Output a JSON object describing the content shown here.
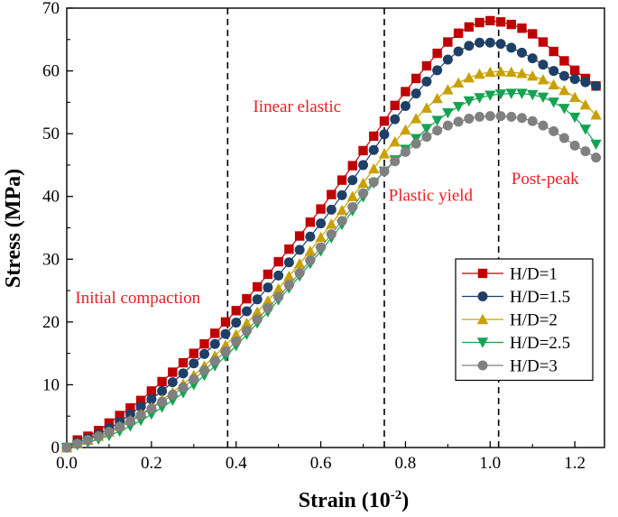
{
  "chart_data": {
    "type": "line",
    "xlabel": "Strain (10",
    "xlabel_exp": "-2",
    "xlabel_close": ")",
    "ylabel": "Stress (MPa)",
    "xlim": [
      0.0,
      1.27
    ],
    "ylim": [
      0,
      70
    ],
    "x_ticks": [
      0.0,
      0.2,
      0.4,
      0.6,
      0.8,
      1.0,
      1.2
    ],
    "x_tick_labels": [
      "0.0",
      "0.2",
      "0.4",
      "0.6",
      "0.8",
      "1.0",
      "1.2"
    ],
    "y_ticks": [
      0,
      10,
      20,
      30,
      40,
      50,
      60,
      70
    ],
    "y_tick_labels": [
      "0",
      "10",
      "20",
      "30",
      "40",
      "50",
      "60",
      "70"
    ],
    "stage_lines": [
      0.38,
      0.75,
      1.02
    ],
    "annotations": [
      {
        "text": "Initial compaction",
        "x": 0.02,
        "y": 23.0
      },
      {
        "text": "Iinear elastic",
        "x": 0.44,
        "y": 53.5
      },
      {
        "text": "Plastic yield",
        "x": 0.76,
        "y": 39.3
      },
      {
        "text": "Post-peak",
        "x": 1.05,
        "y": 42.0
      }
    ],
    "legend_position": "lower-right",
    "series": [
      {
        "name": "H/D=1",
        "marker": "square",
        "color": "#c00000",
        "x": [
          0.0,
          0.025,
          0.05,
          0.075,
          0.1,
          0.125,
          0.15,
          0.175,
          0.2,
          0.225,
          0.25,
          0.275,
          0.3,
          0.325,
          0.35,
          0.375,
          0.4,
          0.425,
          0.45,
          0.475,
          0.5,
          0.525,
          0.55,
          0.575,
          0.6,
          0.625,
          0.65,
          0.675,
          0.7,
          0.725,
          0.75,
          0.775,
          0.8,
          0.825,
          0.85,
          0.875,
          0.9,
          0.925,
          0.95,
          0.975,
          1.0,
          1.025,
          1.05,
          1.075,
          1.1,
          1.125,
          1.15,
          1.175,
          1.2,
          1.225,
          1.25
        ],
        "y": [
          0.0,
          1.2,
          1.8,
          2.7,
          3.9,
          5.1,
          6.3,
          7.5,
          9.0,
          10.5,
          12.0,
          13.5,
          15.0,
          16.5,
          18.2,
          20.0,
          21.8,
          23.7,
          25.6,
          27.6,
          29.6,
          31.6,
          33.7,
          35.9,
          38.0,
          40.3,
          42.6,
          44.9,
          47.3,
          49.6,
          52.0,
          54.5,
          56.7,
          58.8,
          60.8,
          62.8,
          64.6,
          66.0,
          67.0,
          67.7,
          68.0,
          67.8,
          67.4,
          66.8,
          65.9,
          64.6,
          63.1,
          61.6,
          60.1,
          58.8,
          57.6
        ]
      },
      {
        "name": "H/D=1.5",
        "marker": "circle",
        "color": "#1e3f66",
        "x": [
          0.0,
          0.025,
          0.05,
          0.075,
          0.1,
          0.125,
          0.15,
          0.175,
          0.2,
          0.225,
          0.25,
          0.275,
          0.3,
          0.325,
          0.35,
          0.375,
          0.4,
          0.425,
          0.45,
          0.475,
          0.5,
          0.525,
          0.55,
          0.575,
          0.6,
          0.625,
          0.65,
          0.675,
          0.7,
          0.725,
          0.75,
          0.775,
          0.8,
          0.825,
          0.85,
          0.875,
          0.9,
          0.925,
          0.95,
          0.975,
          1.0,
          1.025,
          1.05,
          1.075,
          1.1,
          1.125,
          1.15,
          1.175,
          1.2,
          1.225,
          1.25
        ],
        "y": [
          0.0,
          0.8,
          1.4,
          2.1,
          3.0,
          4.1,
          5.3,
          6.5,
          7.7,
          9.0,
          10.4,
          11.8,
          13.4,
          14.9,
          16.5,
          18.1,
          19.9,
          21.7,
          23.6,
          25.5,
          27.4,
          29.5,
          31.5,
          33.6,
          35.7,
          37.9,
          40.2,
          42.6,
          45.0,
          47.4,
          49.9,
          52.3,
          54.4,
          56.4,
          58.3,
          60.1,
          61.8,
          63.1,
          64.0,
          64.5,
          64.5,
          64.3,
          63.7,
          62.9,
          62.0,
          61.0,
          60.0,
          59.2,
          58.7,
          58.2,
          57.6
        ]
      },
      {
        "name": "H/D=2",
        "marker": "triangle-up",
        "color": "#c8a000",
        "x": [
          0.0,
          0.025,
          0.05,
          0.075,
          0.1,
          0.125,
          0.15,
          0.175,
          0.2,
          0.225,
          0.25,
          0.275,
          0.3,
          0.325,
          0.35,
          0.375,
          0.4,
          0.425,
          0.45,
          0.475,
          0.5,
          0.525,
          0.55,
          0.575,
          0.6,
          0.625,
          0.65,
          0.675,
          0.7,
          0.725,
          0.75,
          0.775,
          0.8,
          0.825,
          0.85,
          0.875,
          0.9,
          0.925,
          0.95,
          0.975,
          1.0,
          1.025,
          1.05,
          1.075,
          1.1,
          1.125,
          1.15,
          1.175,
          1.2,
          1.225,
          1.25
        ],
        "y": [
          0.0,
          0.6,
          1.2,
          1.8,
          2.5,
          3.4,
          4.3,
          5.3,
          6.4,
          7.6,
          8.8,
          10.1,
          11.5,
          13.0,
          14.6,
          16.3,
          18.0,
          19.8,
          21.6,
          23.4,
          25.3,
          27.3,
          29.3,
          31.3,
          33.5,
          35.6,
          37.8,
          40.0,
          42.1,
          44.4,
          46.8,
          48.7,
          50.6,
          52.4,
          54.1,
          55.6,
          57.0,
          58.1,
          58.9,
          59.5,
          59.8,
          59.9,
          59.8,
          59.6,
          59.2,
          58.6,
          57.8,
          56.9,
          55.8,
          54.6,
          53.0
        ]
      },
      {
        "name": "H/D=2.5",
        "marker": "triangle-down",
        "color": "#15a352",
        "x": [
          0.0,
          0.025,
          0.05,
          0.075,
          0.1,
          0.125,
          0.15,
          0.175,
          0.2,
          0.225,
          0.25,
          0.275,
          0.3,
          0.325,
          0.35,
          0.375,
          0.4,
          0.425,
          0.45,
          0.475,
          0.5,
          0.525,
          0.55,
          0.575,
          0.6,
          0.625,
          0.65,
          0.675,
          0.7,
          0.725,
          0.75,
          0.775,
          0.8,
          0.825,
          0.85,
          0.875,
          0.9,
          0.925,
          0.95,
          0.975,
          1.0,
          1.025,
          1.05,
          1.075,
          1.1,
          1.125,
          1.15,
          1.175,
          1.2,
          1.225,
          1.25
        ],
        "y": [
          0.0,
          0.4,
          0.8,
          1.3,
          1.9,
          2.6,
          3.4,
          4.3,
          5.3,
          6.4,
          7.5,
          8.7,
          10.0,
          11.5,
          13.0,
          14.5,
          16.2,
          18.0,
          19.8,
          21.6,
          23.5,
          25.4,
          27.3,
          29.3,
          31.3,
          33.4,
          35.5,
          37.7,
          39.9,
          42.1,
          44.0,
          45.8,
          47.5,
          49.2,
          50.8,
          52.1,
          53.3,
          54.3,
          55.2,
          55.7,
          56.1,
          56.3,
          56.4,
          56.4,
          56.2,
          55.8,
          55.0,
          54.0,
          52.6,
          50.7,
          48.3
        ]
      },
      {
        "name": "H/D=3",
        "marker": "circle",
        "color": "#808080",
        "x": [
          0.0,
          0.025,
          0.05,
          0.075,
          0.1,
          0.125,
          0.15,
          0.175,
          0.2,
          0.225,
          0.25,
          0.275,
          0.3,
          0.325,
          0.35,
          0.375,
          0.4,
          0.425,
          0.45,
          0.475,
          0.5,
          0.525,
          0.55,
          0.575,
          0.6,
          0.625,
          0.65,
          0.675,
          0.7,
          0.725,
          0.75,
          0.775,
          0.8,
          0.825,
          0.85,
          0.875,
          0.9,
          0.925,
          0.95,
          0.975,
          1.0,
          1.025,
          1.05,
          1.075,
          1.1,
          1.125,
          1.15,
          1.175,
          1.2,
          1.225,
          1.25
        ],
        "y": [
          0.0,
          0.6,
          1.2,
          1.8,
          2.5,
          3.3,
          4.2,
          5.2,
          6.2,
          7.3,
          8.4,
          9.6,
          10.9,
          12.3,
          13.8,
          15.3,
          16.9,
          18.6,
          20.4,
          22.2,
          24.0,
          25.9,
          27.8,
          29.8,
          31.9,
          34.0,
          36.1,
          38.3,
          40.5,
          42.3,
          44.0,
          45.6,
          47.1,
          48.4,
          49.5,
          50.5,
          51.3,
          51.9,
          52.4,
          52.7,
          52.8,
          52.8,
          52.7,
          52.5,
          52.0,
          51.3,
          50.4,
          49.3,
          48.1,
          47.2,
          46.2
        ]
      }
    ]
  }
}
